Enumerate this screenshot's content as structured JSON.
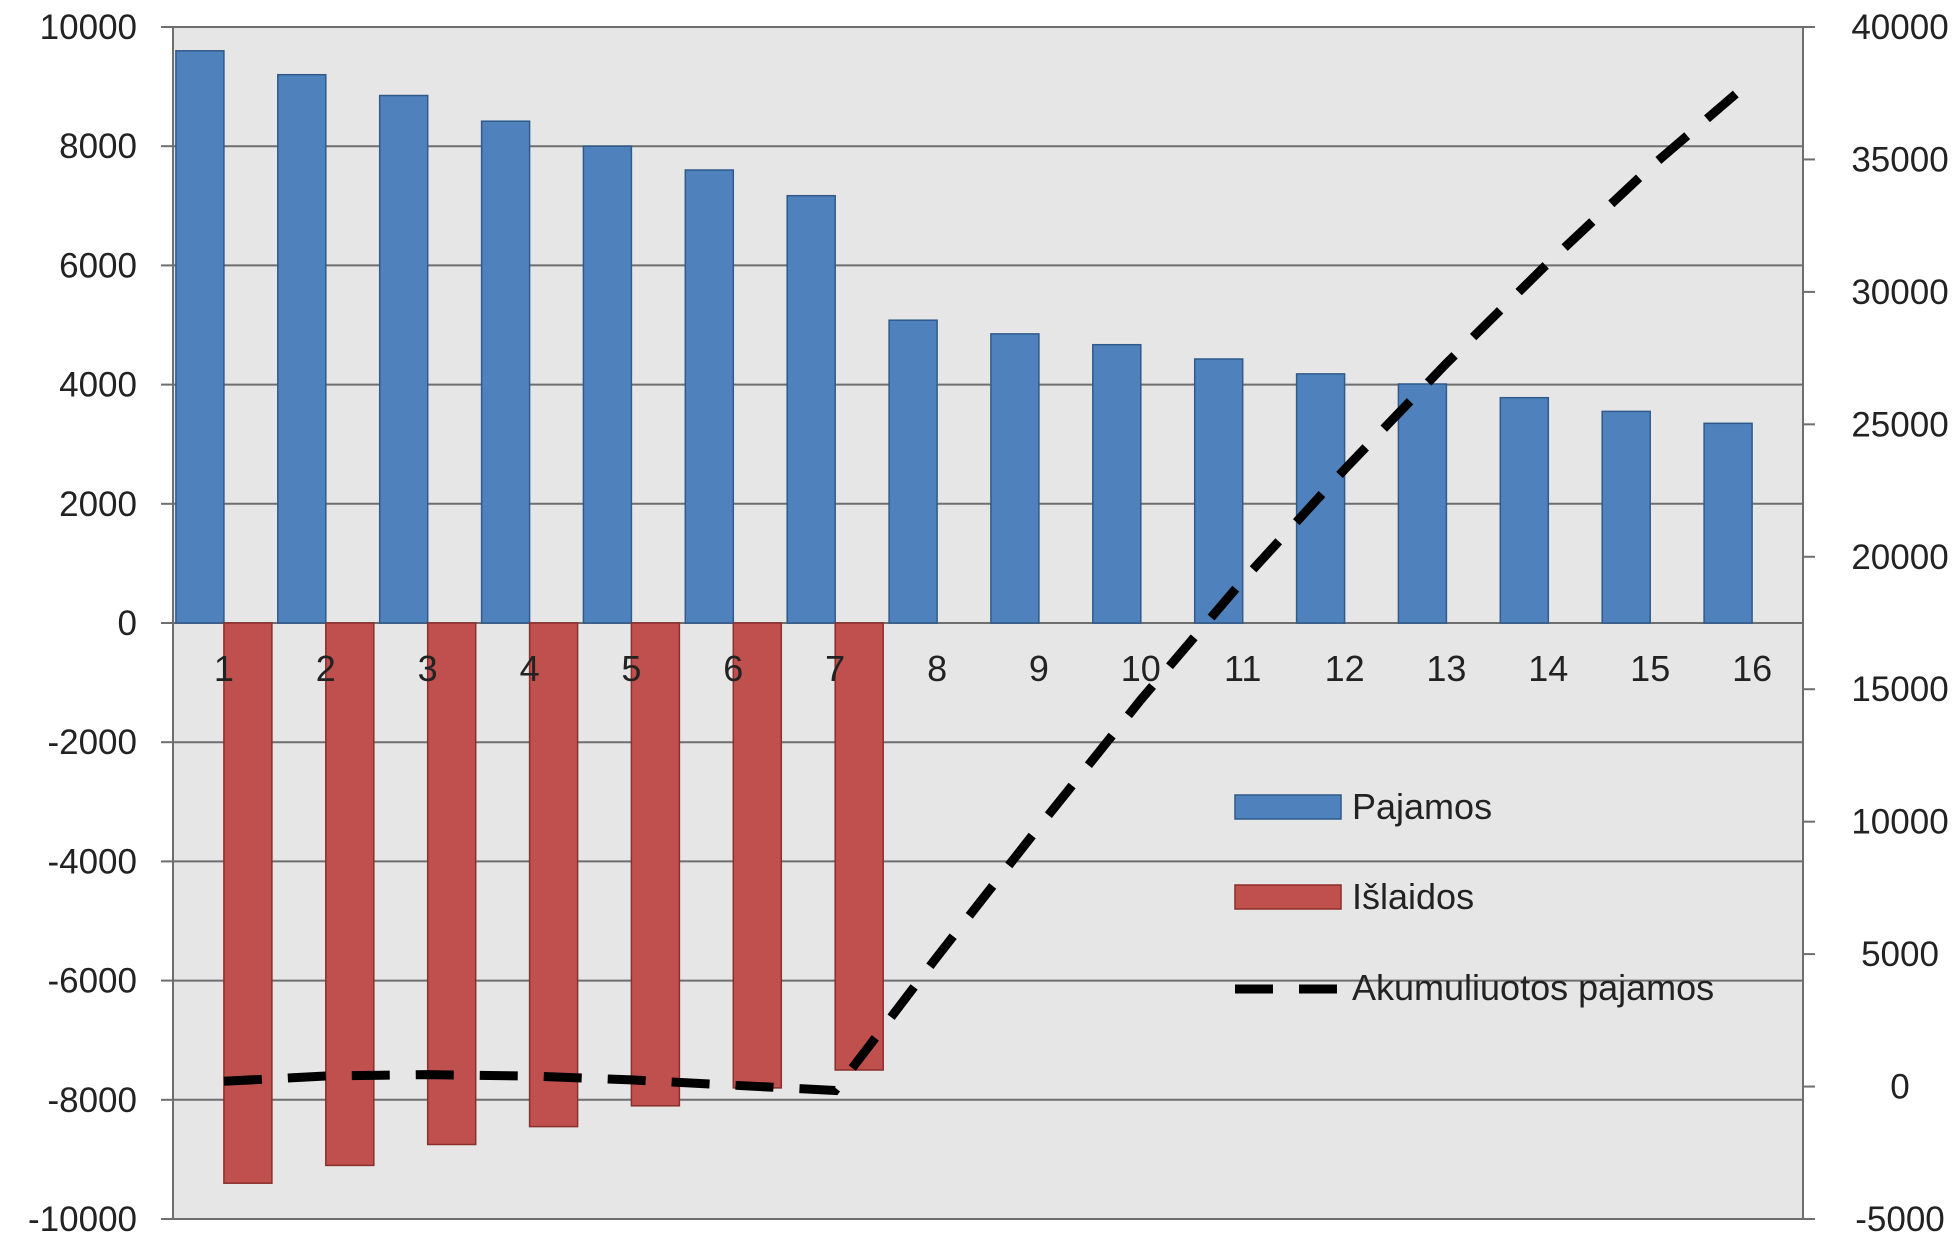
{
  "chart_data": {
    "type": "bar",
    "categories": [
      "1",
      "2",
      "3",
      "4",
      "5",
      "6",
      "7",
      "8",
      "9",
      "10",
      "11",
      "12",
      "13",
      "14",
      "15",
      "16"
    ],
    "series": [
      {
        "name": "Pajamos",
        "kind": "bar",
        "axis": "left",
        "color": "#4F81BD",
        "values": [
          9600,
          9200,
          8850,
          8420,
          8000,
          7600,
          7170,
          5080,
          4850,
          4670,
          4430,
          4180,
          4010,
          3780,
          3550,
          3350
        ]
      },
      {
        "name": "Išlaidos",
        "kind": "bar",
        "axis": "left",
        "color": "#C0504D",
        "values": [
          -9400,
          -9100,
          -8750,
          -8450,
          -8100,
          -7800,
          -7500,
          0,
          0,
          0,
          0,
          0,
          0,
          0,
          0,
          0
        ]
      },
      {
        "name": "Akumuliuotos pajamos",
        "kind": "line",
        "style": "dashed",
        "axis": "right",
        "color": "#000000",
        "values": [
          200,
          400,
          450,
          400,
          250,
          50,
          -150,
          4900,
          9800,
          14600,
          19100,
          23300,
          27300,
          31100,
          34700,
          38000
        ]
      }
    ],
    "yaxis_left": {
      "ticks": [
        "10000",
        "8000",
        "6000",
        "4000",
        "2000",
        "0",
        "-2000",
        "-4000",
        "-6000",
        "-8000",
        "-10000"
      ],
      "ylim": [
        -10000,
        10000
      ]
    },
    "yaxis_right": {
      "ticks": [
        "40000",
        "35000",
        "30000",
        "25000",
        "20000",
        "15000",
        "10000",
        "5000",
        "0",
        "-5000"
      ],
      "ylim": [
        -5000,
        40000
      ]
    },
    "grid": true,
    "legend_position": "right-middle",
    "plot_background": "#E6E6E6"
  }
}
